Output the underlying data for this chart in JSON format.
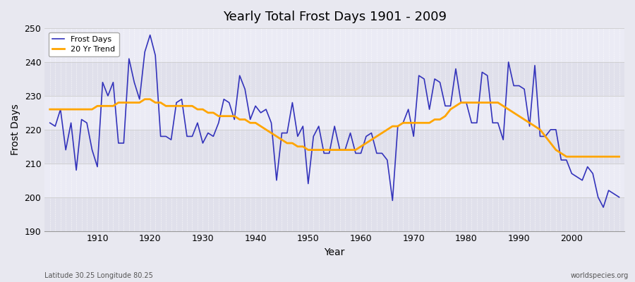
{
  "title": "Yearly Total Frost Days 1901 - 2009",
  "xlabel": "Year",
  "ylabel": "Frost Days",
  "footnote_left": "Latitude 30.25 Longitude 80.25",
  "footnote_right": "worldspecies.org",
  "legend_labels": [
    "Frost Days",
    "20 Yr Trend"
  ],
  "line_color": "#3333bb",
  "trend_color": "#ffa500",
  "bg_color": "#e8e8f0",
  "band_color1": "#e0e0eb",
  "band_color2": "#ebebf5",
  "ylim": [
    190,
    250
  ],
  "yticks": [
    190,
    200,
    210,
    220,
    230,
    240,
    250
  ],
  "xticks": [
    1910,
    1920,
    1930,
    1940,
    1950,
    1960,
    1970,
    1980,
    1990,
    2000
  ],
  "years": [
    1901,
    1902,
    1903,
    1904,
    1905,
    1906,
    1907,
    1908,
    1909,
    1910,
    1911,
    1912,
    1913,
    1914,
    1915,
    1916,
    1917,
    1918,
    1919,
    1920,
    1921,
    1922,
    1923,
    1924,
    1925,
    1926,
    1927,
    1928,
    1929,
    1930,
    1931,
    1932,
    1933,
    1934,
    1935,
    1936,
    1937,
    1938,
    1939,
    1940,
    1941,
    1942,
    1943,
    1944,
    1945,
    1946,
    1947,
    1948,
    1949,
    1950,
    1951,
    1952,
    1953,
    1954,
    1955,
    1956,
    1957,
    1958,
    1959,
    1960,
    1961,
    1962,
    1963,
    1964,
    1965,
    1966,
    1967,
    1968,
    1969,
    1970,
    1971,
    1972,
    1973,
    1974,
    1975,
    1976,
    1977,
    1978,
    1979,
    1980,
    1981,
    1982,
    1983,
    1984,
    1985,
    1986,
    1987,
    1988,
    1989,
    1990,
    1991,
    1992,
    1993,
    1994,
    1995,
    1996,
    1997,
    1998,
    1999,
    2000,
    2001,
    2002,
    2003,
    2004,
    2005,
    2006,
    2007,
    2008,
    2009
  ],
  "frost_days": [
    222,
    221,
    226,
    214,
    222,
    208,
    223,
    222,
    214,
    209,
    234,
    230,
    234,
    216,
    216,
    241,
    234,
    229,
    243,
    248,
    242,
    218,
    218,
    217,
    228,
    229,
    218,
    218,
    222,
    216,
    219,
    218,
    222,
    229,
    228,
    223,
    236,
    232,
    223,
    227,
    225,
    226,
    222,
    205,
    219,
    219,
    228,
    218,
    221,
    204,
    218,
    221,
    213,
    213,
    221,
    214,
    214,
    219,
    213,
    213,
    218,
    219,
    213,
    213,
    211,
    199,
    221,
    222,
    226,
    218,
    236,
    235,
    226,
    235,
    234,
    227,
    227,
    238,
    228,
    228,
    222,
    222,
    237,
    236,
    222,
    222,
    217,
    240,
    233,
    233,
    232,
    221,
    239,
    218,
    218,
    220,
    220,
    211,
    211,
    207,
    206,
    205,
    209,
    207,
    200,
    197,
    202,
    201,
    200
  ],
  "trend": [
    226,
    226,
    226,
    226,
    226,
    226,
    226,
    226,
    226,
    227,
    227,
    227,
    227,
    228,
    228,
    228,
    228,
    228,
    229,
    229,
    228,
    228,
    227,
    227,
    227,
    227,
    227,
    227,
    226,
    226,
    225,
    225,
    224,
    224,
    224,
    224,
    223,
    223,
    222,
    222,
    221,
    220,
    219,
    218,
    217,
    216,
    216,
    215,
    215,
    214,
    214,
    214,
    214,
    214,
    214,
    214,
    214,
    214,
    214,
    215,
    216,
    217,
    218,
    219,
    220,
    221,
    221,
    222,
    222,
    222,
    222,
    222,
    222,
    223,
    223,
    224,
    226,
    227,
    228,
    228,
    228,
    228,
    228,
    228,
    228,
    228,
    227,
    226,
    225,
    224,
    223,
    222,
    221,
    220,
    218,
    216,
    214,
    213,
    212,
    212,
    212,
    212,
    212,
    212,
    212,
    212,
    212,
    212,
    212
  ]
}
